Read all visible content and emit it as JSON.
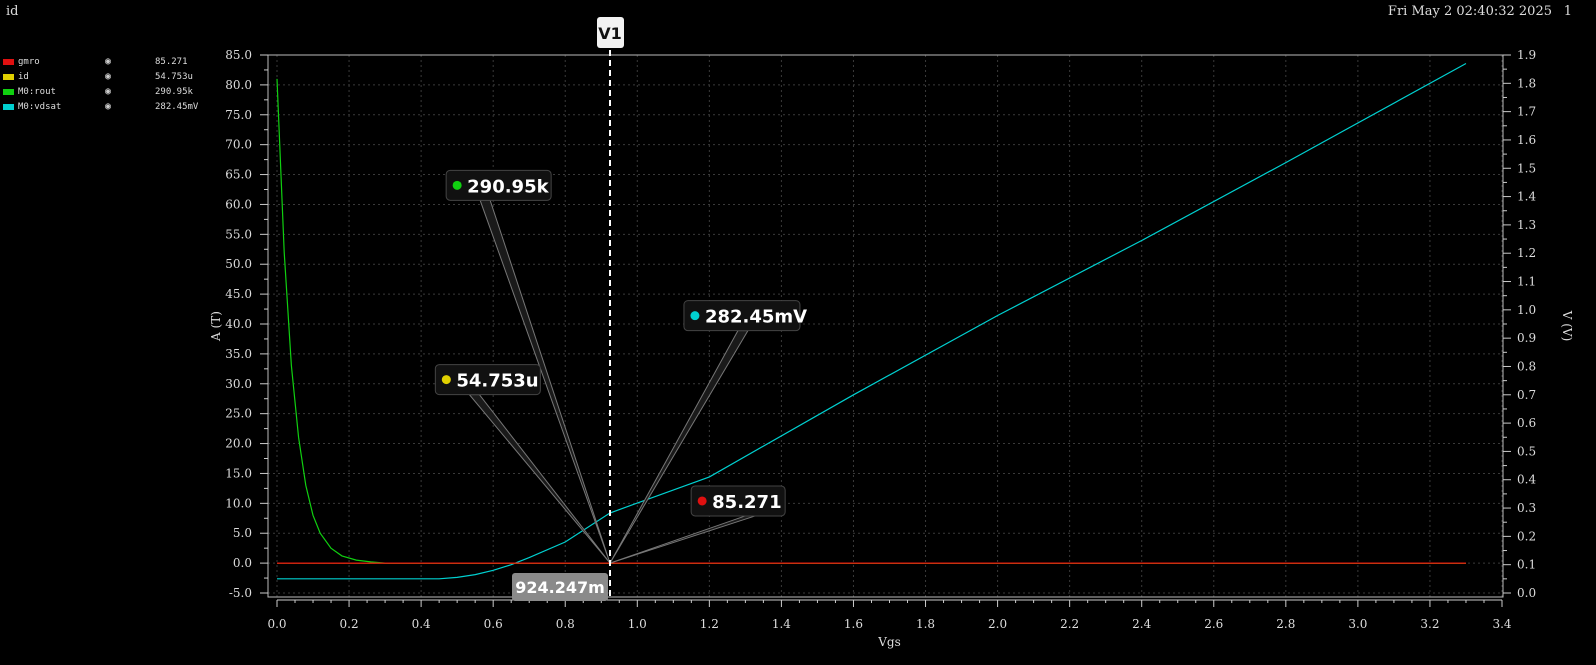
{
  "window": {
    "title": "id",
    "datetime": "Fri May 2 02:40:32 2025",
    "page": "1"
  },
  "legend": [
    {
      "name": "gmro",
      "value": "85.271",
      "color": "#e01010",
      "icon": "eye-icon"
    },
    {
      "name": "id",
      "value": "54.753u",
      "color": "#e0d000",
      "icon": "eye-icon"
    },
    {
      "name": "M0:rout",
      "value": "290.95k",
      "color": "#10d010",
      "icon": "eye-icon"
    },
    {
      "name": "M0:vdsat",
      "value": "282.45mV",
      "color": "#00d0d0",
      "icon": "eye-icon"
    }
  ],
  "marker": {
    "label": "V1",
    "x": 0.924247,
    "x_label": "924.247m"
  },
  "chart_data": {
    "type": "line",
    "xlabel": "Vgs",
    "ylabel_left": "A (T)",
    "ylabel_right": "V (V)",
    "xlim": [
      0.0,
      3.4
    ],
    "ylim_left": [
      -5.0,
      85.0
    ],
    "ylim_right": [
      0.0,
      1.9
    ],
    "x_ticks": [
      "0.0",
      "0.2",
      "0.4",
      "0.6",
      "0.8",
      "1.0",
      "1.2",
      "1.4",
      "1.6",
      "1.8",
      "2.0",
      "2.2",
      "2.4",
      "2.6",
      "2.8",
      "3.0",
      "3.2",
      "3.4"
    ],
    "y_left_ticks": [
      "85.0",
      "80.0",
      "75.0",
      "70.0",
      "65.0",
      "60.0",
      "55.0",
      "50.0",
      "45.0",
      "40.0",
      "35.0",
      "30.0",
      "25.0",
      "20.0",
      "15.0",
      "10.0",
      "5.0",
      "0.0",
      "-5.0"
    ],
    "y_right_ticks": [
      "1.9",
      "1.8",
      "1.7",
      "1.6",
      "1.5",
      "1.4",
      "1.3",
      "1.2",
      "1.1",
      "1.0",
      "0.9",
      "0.8",
      "0.7",
      "0.6",
      "0.5",
      "0.4",
      "0.3",
      "0.2",
      "0.1",
      "0.0"
    ],
    "grid": true,
    "series": [
      {
        "name": "gmro",
        "color": "#e01010",
        "axis": "left",
        "x": [
          0.0,
          3.3
        ],
        "y": [
          0.0,
          0.0
        ]
      },
      {
        "name": "id",
        "color": "#e0d000",
        "axis": "left",
        "x": [
          0.0,
          3.3
        ],
        "y": [
          0.0,
          0.0
        ]
      },
      {
        "name": "M0:rout",
        "color": "#10d010",
        "axis": "left",
        "x": [
          0.0,
          0.02,
          0.04,
          0.06,
          0.08,
          0.1,
          0.12,
          0.15,
          0.18,
          0.22,
          0.26,
          0.3,
          3.3
        ],
        "y": [
          81.0,
          52.0,
          33.0,
          21.0,
          13.0,
          8.0,
          5.0,
          2.5,
          1.2,
          0.5,
          0.2,
          0.0,
          0.0
        ]
      },
      {
        "name": "M0:vdsat",
        "color": "#00d0d0",
        "axis": "right",
        "x": [
          0.0,
          0.45,
          0.5,
          0.55,
          0.6,
          0.65,
          0.7,
          0.8,
          0.924,
          1.2,
          1.6,
          2.0,
          2.4,
          2.8,
          3.3
        ],
        "y": [
          0.05,
          0.05,
          0.055,
          0.065,
          0.08,
          0.1,
          0.125,
          0.18,
          0.2825,
          0.41,
          0.7,
          0.98,
          1.245,
          1.52,
          1.87
        ]
      }
    ],
    "callouts": [
      {
        "series": "M0:rout",
        "text": "290.95k",
        "color": "#10d010",
        "at": [
          0.5,
          63.2
        ]
      },
      {
        "series": "M0:vdsat",
        "text": "282.45mV",
        "color": "#00d0d0",
        "at": [
          1.16,
          41.4
        ]
      },
      {
        "series": "id",
        "text": "54.753u",
        "color": "#e0d000",
        "at": [
          0.47,
          30.7
        ]
      },
      {
        "series": "gmro",
        "text": "85.271",
        "color": "#e01010",
        "at": [
          1.18,
          10.4
        ]
      }
    ]
  }
}
